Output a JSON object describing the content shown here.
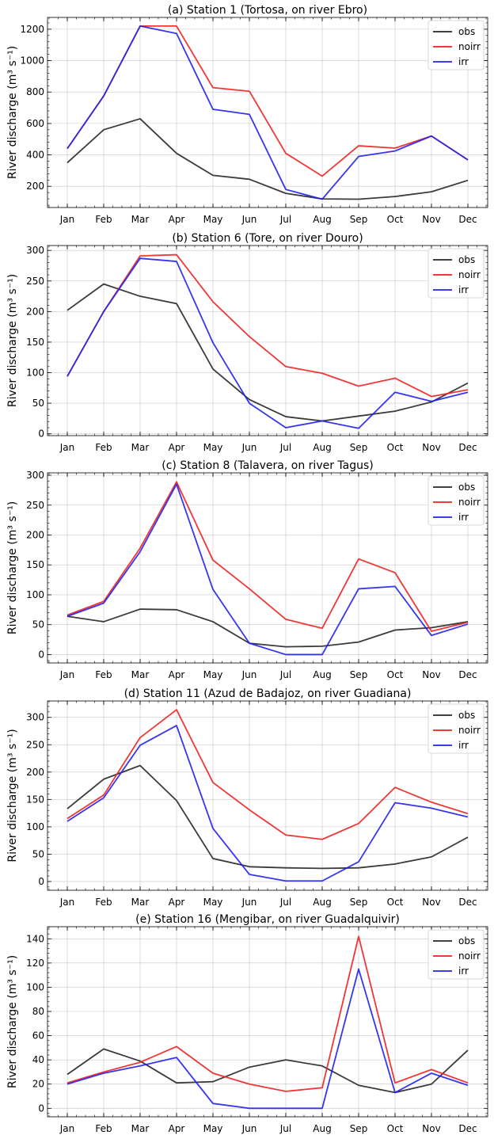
{
  "colors": {
    "obs": "#262626",
    "noirr": "#f02020",
    "irr": "#2020f0"
  },
  "chart_data": [
    {
      "type": "line",
      "title": "(a) Station 1 (Tortosa, on river Ebro)",
      "ylabel": "River discharge (m³ s⁻¹)",
      "categories": [
        "Jan",
        "Feb",
        "Mar",
        "Apr",
        "May",
        "Jun",
        "Jul",
        "Aug",
        "Sep",
        "Oct",
        "Nov",
        "Dec"
      ],
      "ylim": [
        65,
        1275
      ],
      "yticks": [
        200,
        400,
        600,
        800,
        1000,
        1200
      ],
      "legend": "top-right",
      "grid": true,
      "series": [
        {
          "name": "obs",
          "values": [
            350,
            560,
            630,
            410,
            270,
            245,
            155,
            120,
            118,
            135,
            165,
            238
          ]
        },
        {
          "name": "noirr",
          "values": [
            440,
            775,
            1220,
            1220,
            828,
            805,
            410,
            265,
            458,
            443,
            520,
            368
          ]
        },
        {
          "name": "irr",
          "values": [
            440,
            775,
            1220,
            1173,
            690,
            658,
            180,
            118,
            390,
            425,
            520,
            368
          ]
        }
      ]
    },
    {
      "type": "line",
      "title": "(b) Station 6 (Tore, on river Douro)",
      "ylabel": "River discharge (m³ s⁻¹)",
      "categories": [
        "Jan",
        "Feb",
        "Mar",
        "Apr",
        "May",
        "Jun",
        "Jul",
        "Aug",
        "Sep",
        "Oct",
        "Nov",
        "Dec"
      ],
      "ylim": [
        -3,
        308
      ],
      "yticks": [
        0,
        50,
        100,
        150,
        200,
        250,
        300
      ],
      "legend": "top-right",
      "grid": true,
      "series": [
        {
          "name": "obs",
          "values": [
            202,
            245,
            225,
            213,
            106,
            56,
            28,
            21,
            29,
            37,
            52,
            83
          ]
        },
        {
          "name": "noirr",
          "values": [
            94,
            200,
            291,
            293,
            216,
            159,
            110,
            99,
            78,
            91,
            61,
            72
          ]
        },
        {
          "name": "irr",
          "values": [
            94,
            200,
            287,
            282,
            149,
            50,
            10,
            21,
            9,
            68,
            53,
            68
          ]
        }
      ]
    },
    {
      "type": "line",
      "title": "(c) Station 8 (Talavera, on river Tagus)",
      "ylabel": "River discharge (m³ s⁻¹)",
      "categories": [
        "Jan",
        "Feb",
        "Mar",
        "Apr",
        "May",
        "Jun",
        "Jul",
        "Aug",
        "Sep",
        "Oct",
        "Nov",
        "Dec"
      ],
      "ylim": [
        -14,
        304
      ],
      "yticks": [
        0,
        50,
        100,
        150,
        200,
        250,
        300
      ],
      "legend": "top-right",
      "grid": true,
      "series": [
        {
          "name": "obs",
          "values": [
            64,
            55,
            76,
            75,
            55,
            19,
            13,
            14,
            21,
            41,
            45,
            55
          ]
        },
        {
          "name": "noirr",
          "values": [
            66,
            89,
            178,
            289,
            158,
            110,
            59,
            44,
            160,
            137,
            39,
            54
          ]
        },
        {
          "name": "irr",
          "values": [
            64,
            86,
            172,
            285,
            109,
            19,
            0,
            0,
            110,
            114,
            32,
            51
          ]
        }
      ]
    },
    {
      "type": "line",
      "title": "(d) Station 11 (Azud de Badajoz, on river Guadiana)",
      "ylabel": "River discharge (m³ s⁻¹)",
      "categories": [
        "Jan",
        "Feb",
        "Mar",
        "Apr",
        "May",
        "Jun",
        "Jul",
        "Aug",
        "Sep",
        "Oct",
        "Nov",
        "Dec"
      ],
      "ylim": [
        -16,
        330
      ],
      "yticks": [
        0,
        50,
        100,
        150,
        200,
        250,
        300
      ],
      "legend": "top-right",
      "grid": true,
      "series": [
        {
          "name": "obs",
          "values": [
            133,
            187,
            212,
            148,
            42,
            27,
            25,
            24,
            25,
            32,
            45,
            81
          ]
        },
        {
          "name": "noirr",
          "values": [
            115,
            158,
            263,
            314,
            181,
            131,
            85,
            77,
            106,
            172,
            145,
            124
          ]
        },
        {
          "name": "irr",
          "values": [
            110,
            153,
            249,
            285,
            97,
            13,
            1,
            1,
            36,
            144,
            134,
            118
          ]
        }
      ]
    },
    {
      "type": "line",
      "title": "(e) Station 16 (Mengibar, on river Guadalquivir)",
      "ylabel": "River discharge (m³ s⁻¹)",
      "categories": [
        "Jan",
        "Feb",
        "Mar",
        "Apr",
        "May",
        "Jun",
        "Jul",
        "Aug",
        "Sep",
        "Oct",
        "Nov",
        "Dec"
      ],
      "ylim": [
        -7,
        150
      ],
      "yticks": [
        0,
        20,
        40,
        60,
        80,
        100,
        120,
        140
      ],
      "legend": "top-right",
      "grid": true,
      "series": [
        {
          "name": "obs",
          "values": [
            28,
            49,
            39,
            21,
            22,
            34,
            40,
            35,
            19,
            13,
            20,
            48
          ]
        },
        {
          "name": "noirr",
          "values": [
            21,
            30,
            38,
            51,
            29,
            20,
            14,
            17,
            142,
            21,
            32,
            21
          ]
        },
        {
          "name": "irr",
          "values": [
            20,
            29,
            35,
            42,
            4,
            0,
            0,
            0,
            115,
            13,
            29,
            19
          ]
        }
      ]
    }
  ]
}
